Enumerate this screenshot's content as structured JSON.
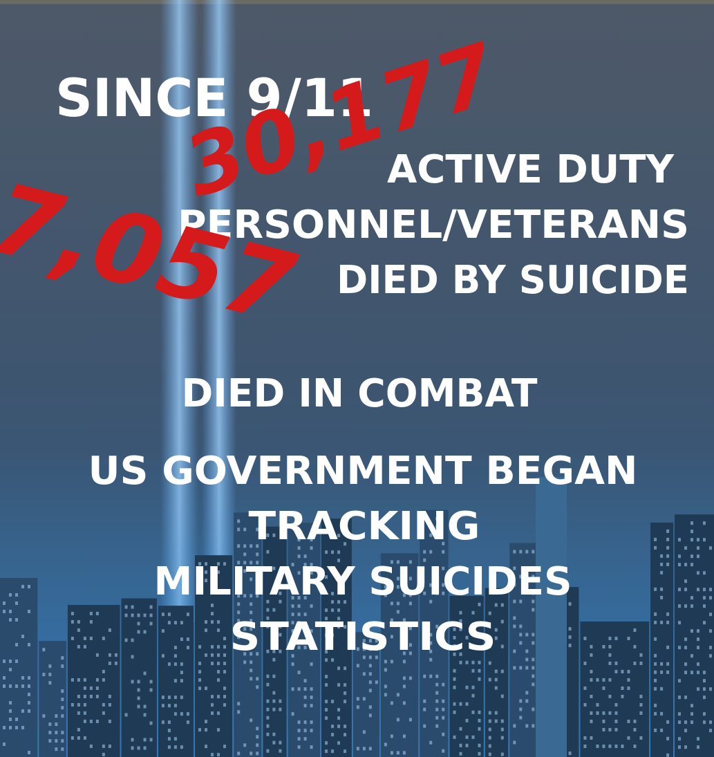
{
  "headline": "SINCE 9/11",
  "suicide": {
    "count": "30,177",
    "lines": [
      "ACTIVE DUTY",
      "PERSONNEL/VETERANS",
      "DIED BY SUICIDE"
    ]
  },
  "combat": {
    "count": "7,057",
    "label": "DIED IN COMBAT"
  },
  "footer": {
    "lines": [
      "US GOVERNMENT BEGAN",
      "TRACKING",
      "MILITARY SUICIDES",
      "STATISTICS"
    ]
  }
}
